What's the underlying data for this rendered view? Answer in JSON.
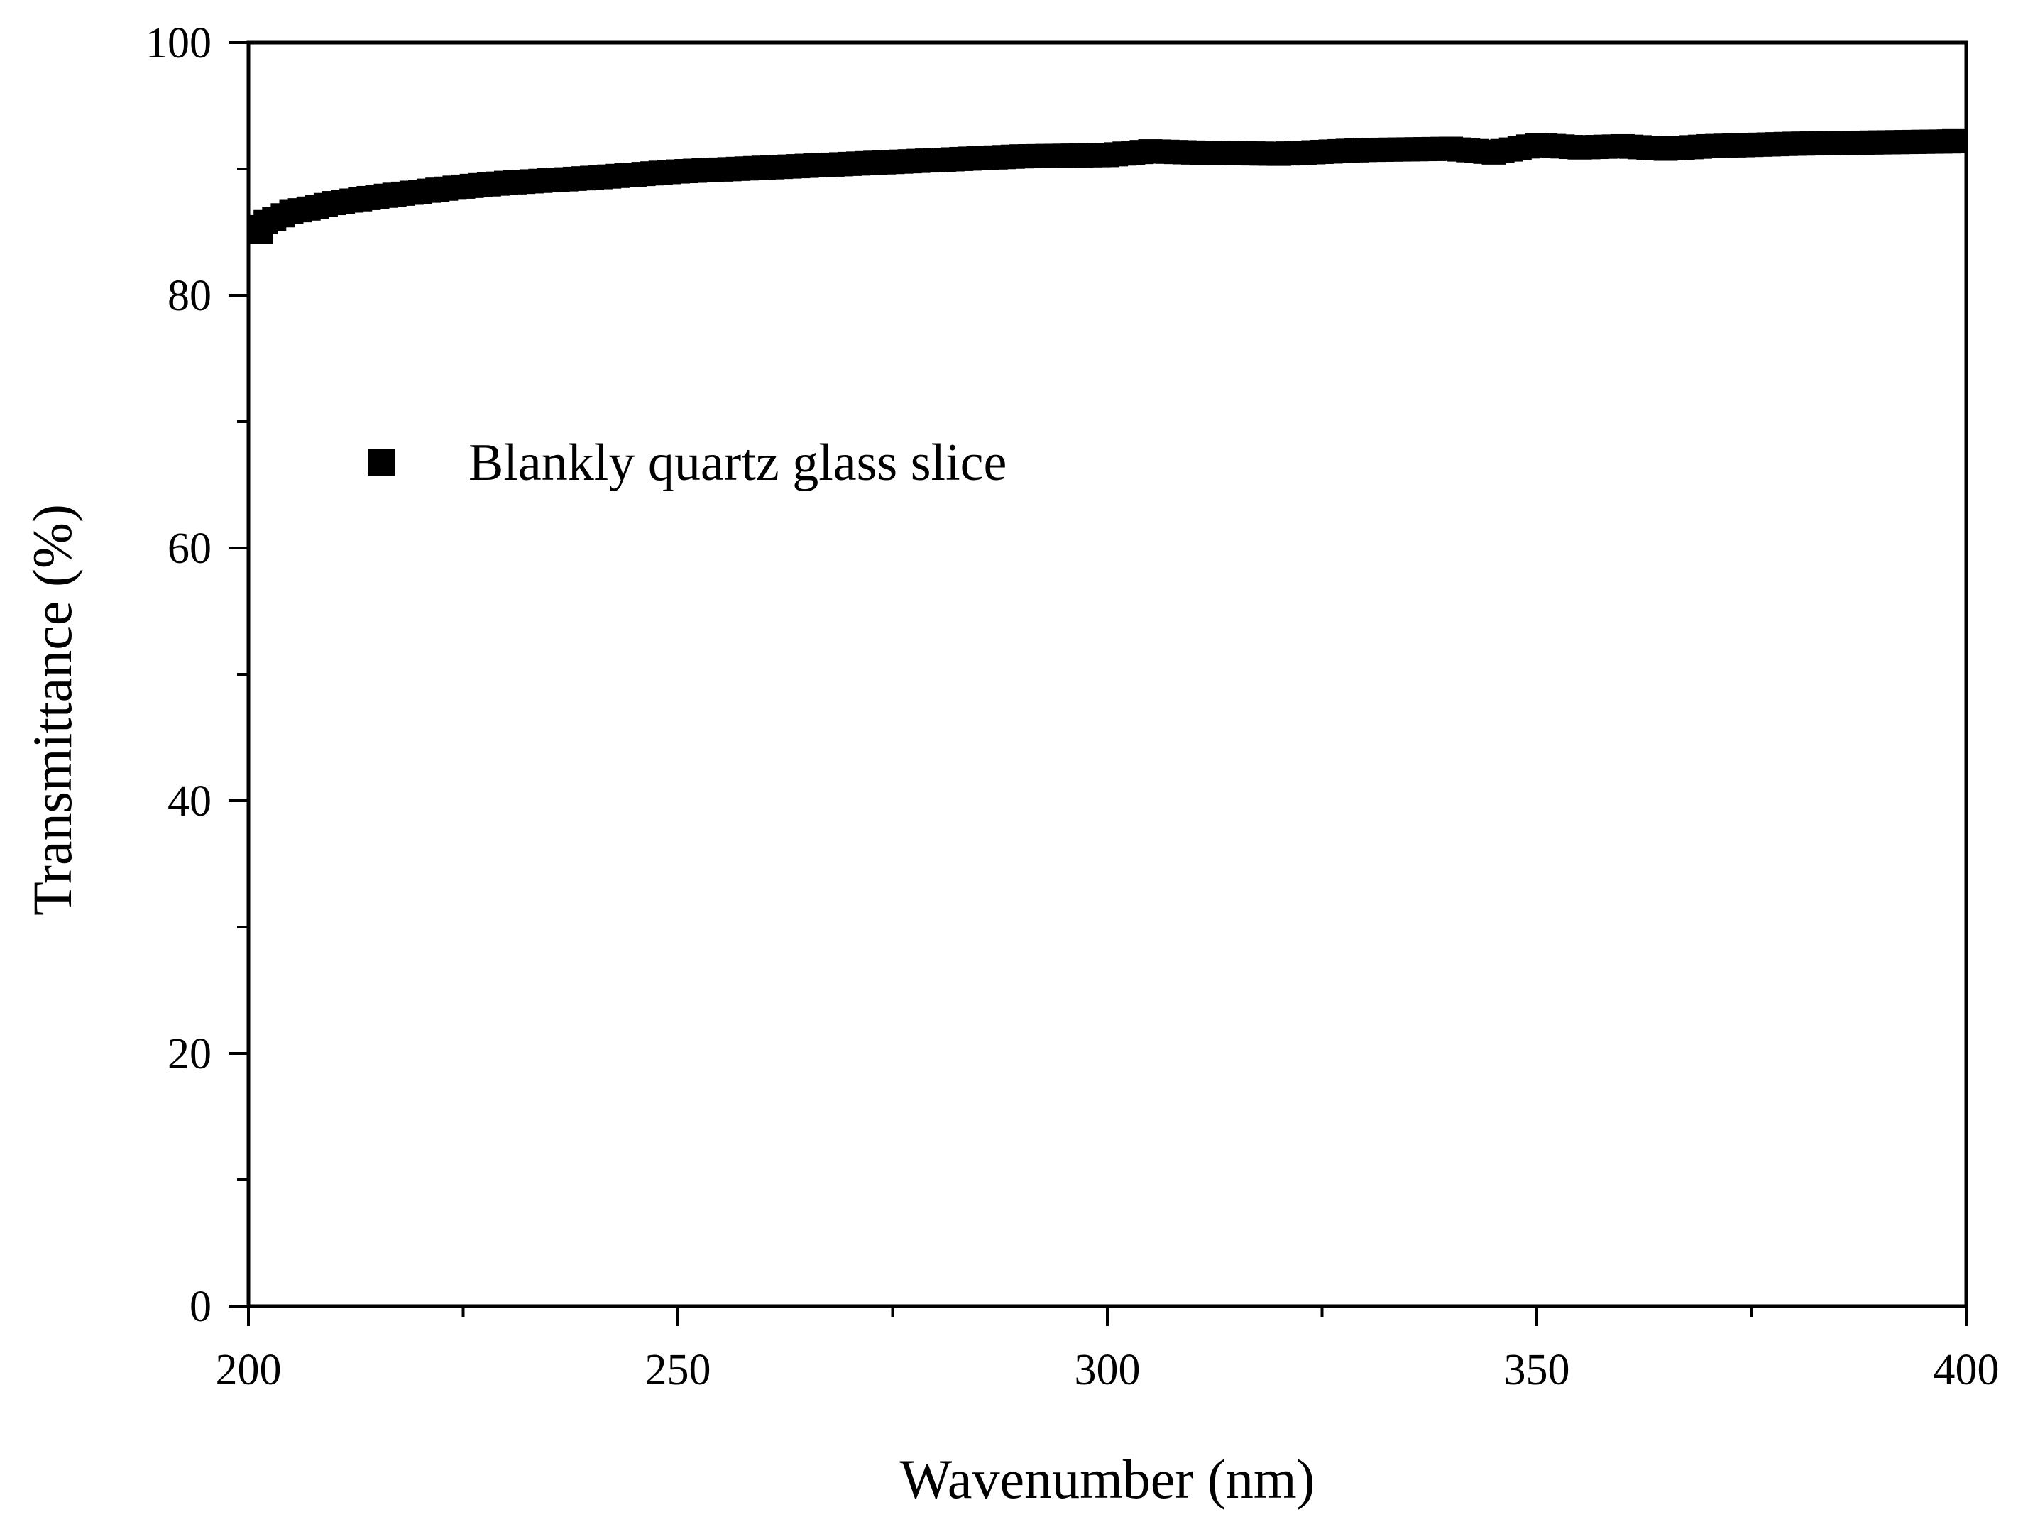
{
  "chart_data": {
    "type": "scatter",
    "title": "",
    "xlabel": "Wavenumber (nm)",
    "ylabel": "Transmittance (%)",
    "xlim": [
      200,
      400
    ],
    "ylim": [
      0,
      100
    ],
    "xticks": [
      200,
      250,
      300,
      350,
      400
    ],
    "yticks": [
      0,
      20,
      40,
      60,
      80,
      100
    ],
    "xtick_labels": [
      "200",
      "250",
      "300",
      "350",
      "400"
    ],
    "ytick_labels": [
      "0",
      "20",
      "40",
      "60",
      "80",
      "100"
    ],
    "legend_position": "upper-left",
    "series": [
      {
        "name": "Blankly quartz glass slice",
        "marker": "square",
        "color": "#000000",
        "x": [
          200,
          202,
          205,
          208,
          210,
          215,
          220,
          225,
          230,
          240,
          250,
          260,
          270,
          280,
          290,
          300,
          305,
          310,
          320,
          330,
          340,
          345,
          350,
          355,
          360,
          365,
          370,
          380,
          390,
          400
        ],
        "y": [
          85.0,
          85.8,
          86.6,
          87.0,
          87.3,
          87.8,
          88.2,
          88.6,
          88.9,
          89.3,
          89.8,
          90.1,
          90.4,
          90.7,
          91.0,
          91.1,
          91.4,
          91.3,
          91.2,
          91.5,
          91.6,
          91.3,
          91.9,
          91.7,
          91.8,
          91.6,
          91.8,
          92.0,
          92.1,
          92.2
        ]
      }
    ]
  }
}
